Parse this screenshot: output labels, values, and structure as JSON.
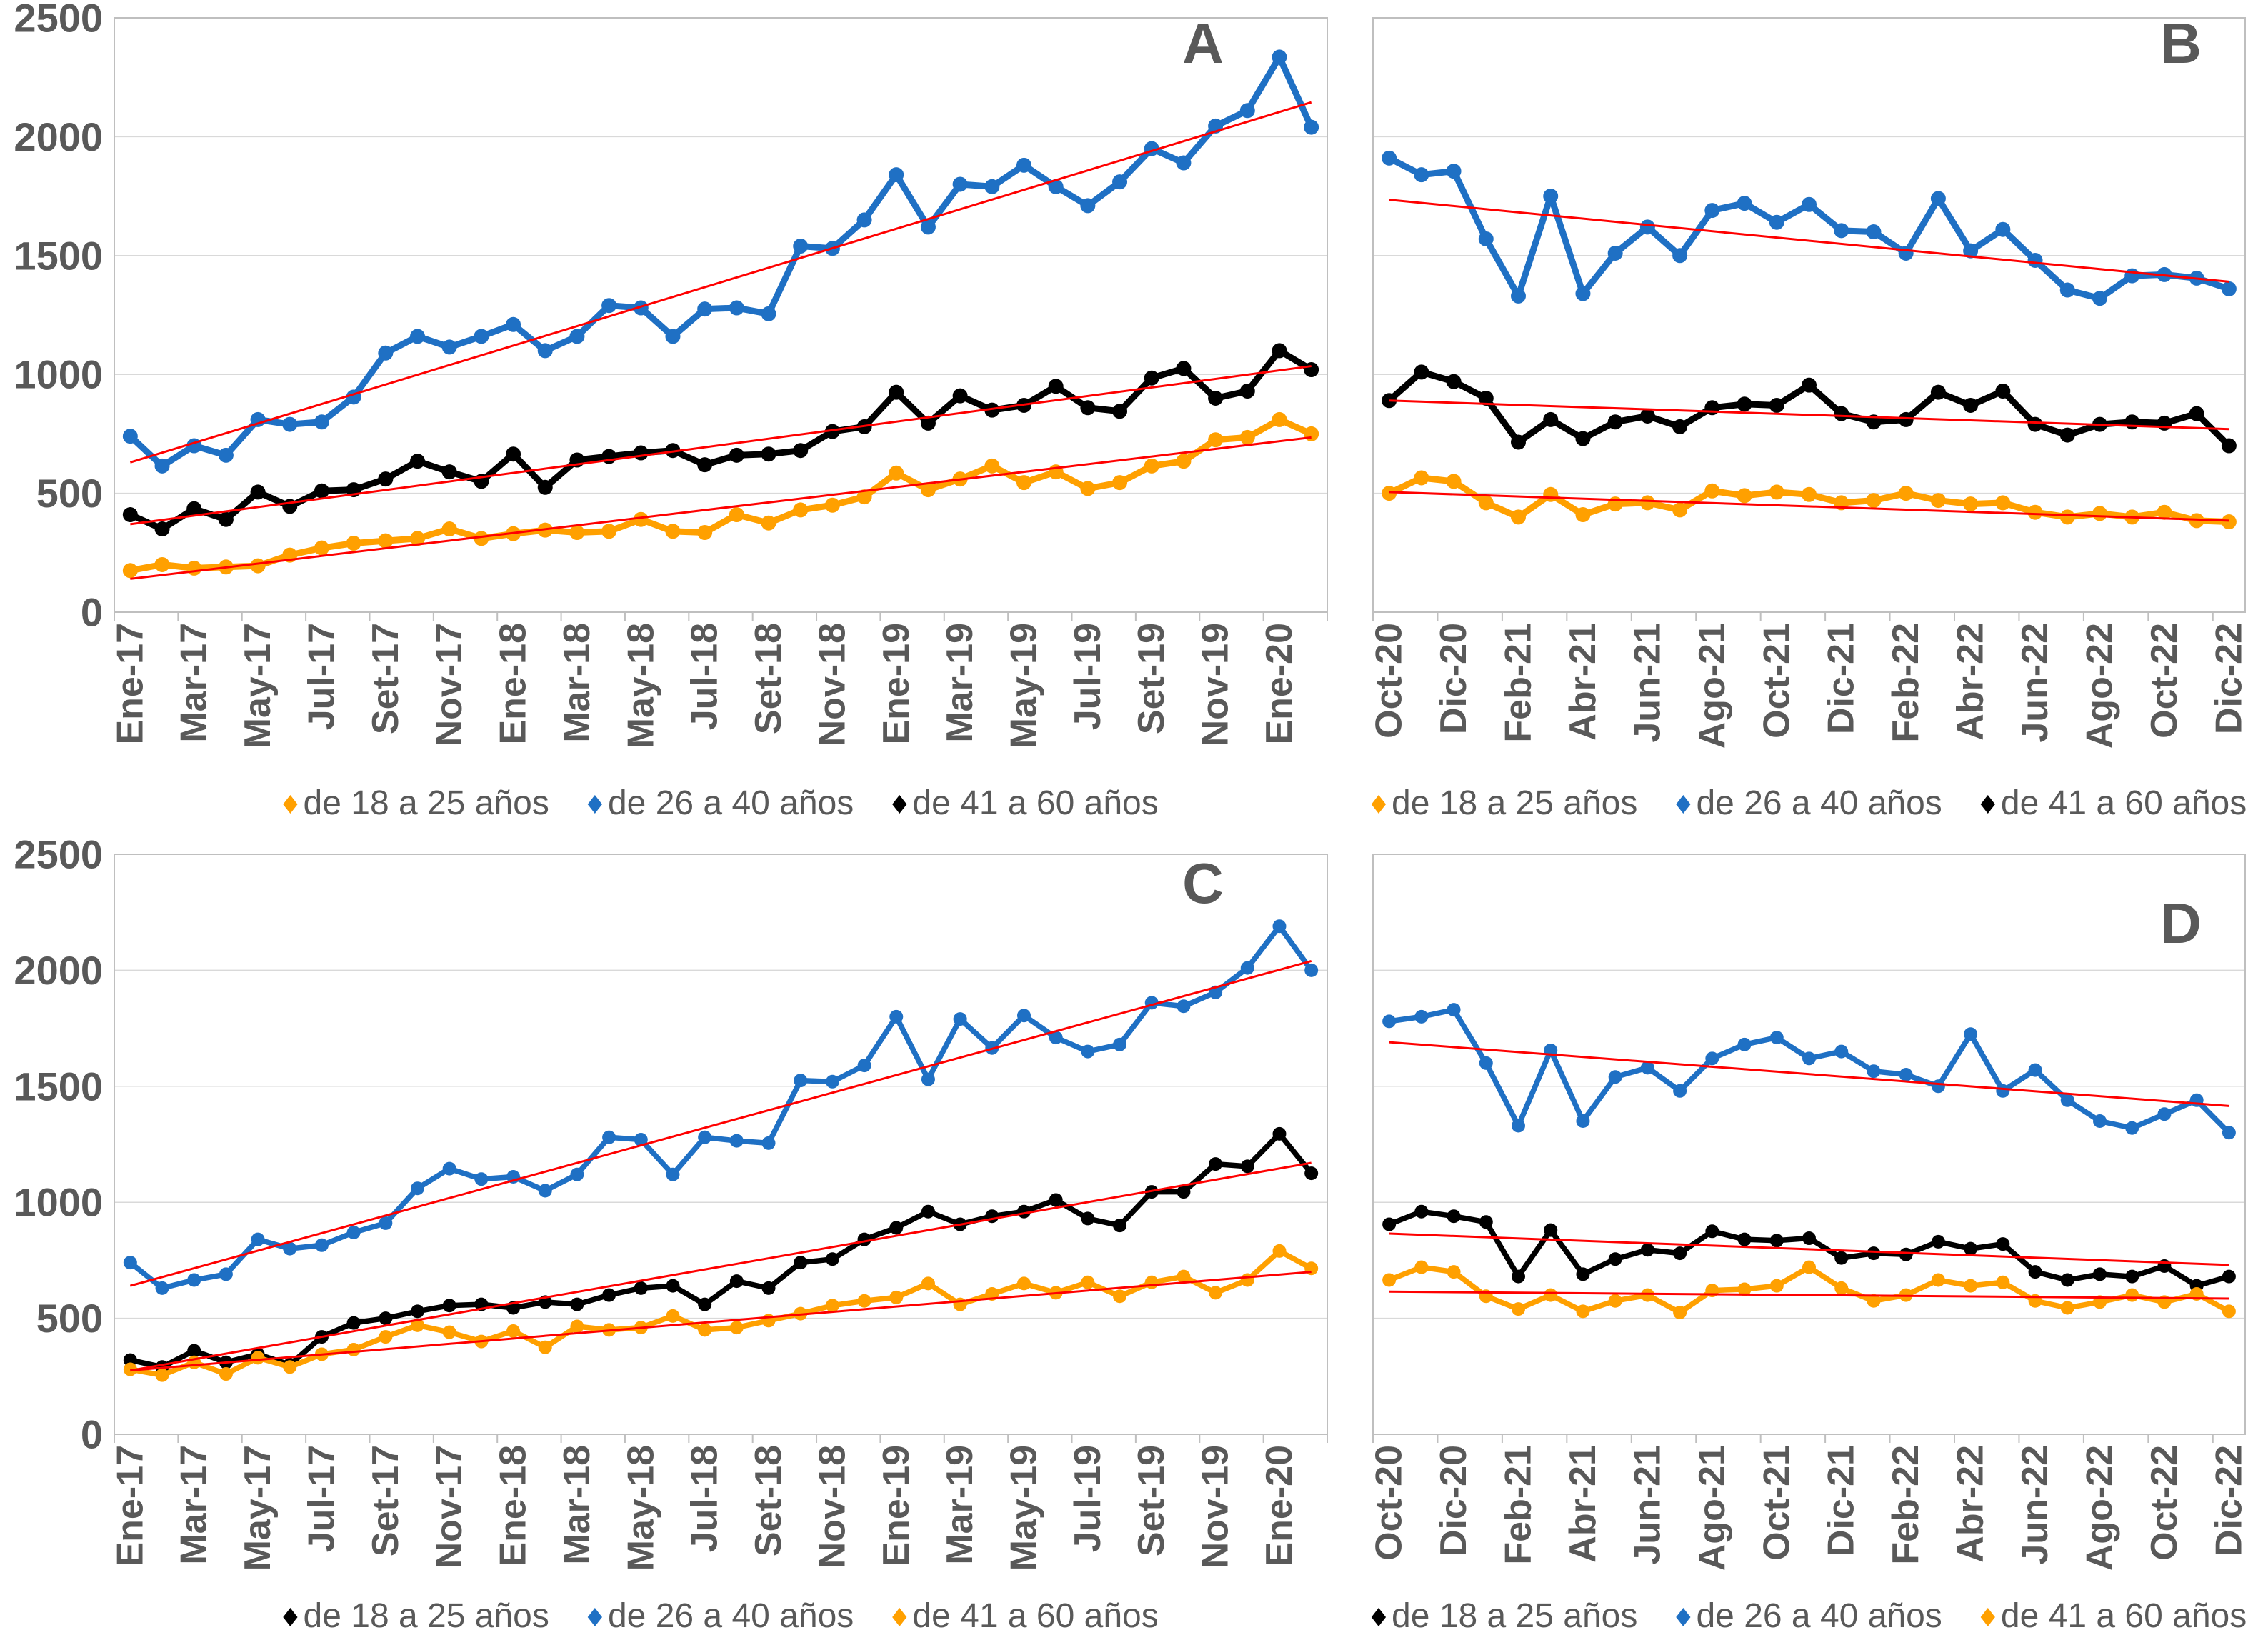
{
  "figure": {
    "background": "#FFFFFF",
    "panel_letters": [
      "A",
      "B",
      "C",
      "D"
    ]
  },
  "colors": {
    "orange": "#FFA000",
    "blue": "#1F70C4",
    "black": "#000000",
    "trend": "#FF0000",
    "grid": "#D9D9D9",
    "axis": "#BFBFBF",
    "label": "#595959"
  },
  "y_axis": {
    "ticks": [
      0,
      500,
      1000,
      1500,
      2000,
      2500
    ],
    "labels": [
      "0",
      "500",
      "1000",
      "1500",
      "2000",
      "2500"
    ]
  },
  "chart_data": [
    {
      "id": "A",
      "letter": "A",
      "type": "line",
      "row": 0,
      "col": 0,
      "show_y_labels": true,
      "ylim": [
        0,
        2500
      ],
      "x_label_every": 2,
      "legend_position": "bottom",
      "grid": true,
      "categories": [
        "Ene-17",
        "Feb-17",
        "Mar-17",
        "Abr-17",
        "May-17",
        "Jun-17",
        "Jul-17",
        "Ago-17",
        "Set-17",
        "Oct-17",
        "Nov-17",
        "Dic-17",
        "Ene-18",
        "Feb-18",
        "Mar-18",
        "Abr-18",
        "May-18",
        "Jun-18",
        "Jul-18",
        "Ago-18",
        "Set-18",
        "Oct-18",
        "Nov-18",
        "Dic-18",
        "Ene-19",
        "Feb-19",
        "Mar-19",
        "Abr-19",
        "May-19",
        "Jun-19",
        "Jul-19",
        "Ago-19",
        "Set-19",
        "Oct-19",
        "Nov-19",
        "Dic-19",
        "Ene-20",
        "Feb-20"
      ],
      "series": [
        {
          "name": "de 18 a 25 años",
          "color": "orange",
          "values": [
            175,
            200,
            185,
            190,
            195,
            240,
            270,
            290,
            300,
            310,
            350,
            310,
            330,
            345,
            335,
            340,
            390,
            340,
            335,
            410,
            375,
            430,
            450,
            485,
            585,
            515,
            560,
            615,
            545,
            590,
            520,
            545,
            615,
            635,
            725,
            735,
            810,
            750
          ],
          "trend": [
            140,
            735
          ]
        },
        {
          "name": "de 26 a 40 años",
          "color": "blue",
          "values": [
            740,
            615,
            700,
            660,
            810,
            790,
            800,
            905,
            1090,
            1160,
            1115,
            1160,
            1210,
            1100,
            1160,
            1290,
            1280,
            1160,
            1275,
            1280,
            1255,
            1540,
            1530,
            1650,
            1840,
            1620,
            1800,
            1790,
            1880,
            1790,
            1710,
            1810,
            1950,
            1890,
            2045,
            2110,
            2335,
            2040
          ],
          "trend": [
            630,
            2145
          ]
        },
        {
          "name": "de 41 a 60 años",
          "color": "black",
          "values": [
            410,
            350,
            435,
            390,
            505,
            445,
            510,
            515,
            560,
            635,
            590,
            550,
            665,
            525,
            640,
            655,
            670,
            680,
            620,
            660,
            665,
            680,
            760,
            780,
            925,
            795,
            910,
            850,
            870,
            950,
            860,
            845,
            985,
            1025,
            900,
            930,
            1100,
            1020
          ],
          "trend": [
            370,
            1035
          ]
        }
      ]
    },
    {
      "id": "B",
      "letter": "B",
      "type": "line",
      "row": 0,
      "col": 1,
      "show_y_labels": false,
      "ylim": [
        0,
        2500
      ],
      "x_label_every": 2,
      "legend_position": "bottom",
      "grid": true,
      "categories": [
        "Oct-20",
        "Nov-20",
        "Dic-20",
        "Ene-21",
        "Feb-21",
        "Mar-21",
        "Abr-21",
        "May-21",
        "Jun-21",
        "Jul-21",
        "Ago-21",
        "Set-21",
        "Oct-21",
        "Nov-21",
        "Dic-21",
        "Ene-22",
        "Feb-22",
        "Mar-22",
        "Abr-22",
        "May-22",
        "Jun-22",
        "Jul-22",
        "Ago-22",
        "Set-22",
        "Oct-22",
        "Nov-22",
        "Dic-22"
      ],
      "series": [
        {
          "name": "de 18 a 25 años",
          "color": "orange",
          "values": [
            500,
            565,
            550,
            460,
            400,
            495,
            410,
            455,
            460,
            430,
            510,
            490,
            505,
            495,
            460,
            470,
            500,
            470,
            455,
            460,
            420,
            400,
            415,
            400,
            420,
            385,
            380
          ],
          "trend": [
            505,
            385
          ]
        },
        {
          "name": "de 26 a 40 años",
          "color": "blue",
          "values": [
            1910,
            1840,
            1855,
            1570,
            1330,
            1750,
            1340,
            1510,
            1620,
            1500,
            1690,
            1720,
            1640,
            1715,
            1605,
            1600,
            1510,
            1740,
            1520,
            1610,
            1480,
            1355,
            1320,
            1415,
            1420,
            1405,
            1360
          ],
          "trend": [
            1735,
            1390
          ]
        },
        {
          "name": "de 41 a 60 años",
          "color": "black",
          "values": [
            890,
            1010,
            970,
            900,
            715,
            810,
            730,
            800,
            825,
            780,
            860,
            875,
            870,
            955,
            835,
            800,
            810,
            925,
            870,
            930,
            790,
            745,
            790,
            800,
            795,
            835,
            700
          ],
          "trend": [
            890,
            770
          ]
        }
      ]
    },
    {
      "id": "C",
      "letter": "C",
      "type": "line",
      "row": 1,
      "col": 0,
      "show_y_labels": true,
      "ylim": [
        0,
        2500
      ],
      "x_label_every": 2,
      "legend_position": "bottom",
      "grid": true,
      "categories": [
        "Ene-17",
        "Feb-17",
        "Mar-17",
        "Abr-17",
        "May-17",
        "Jun-17",
        "Jul-17",
        "Ago-17",
        "Set-17",
        "Oct-17",
        "Nov-17",
        "Dic-17",
        "Ene-18",
        "Feb-18",
        "Mar-18",
        "Abr-18",
        "May-18",
        "Jun-18",
        "Jul-18",
        "Ago-18",
        "Set-18",
        "Oct-18",
        "Nov-18",
        "Dic-18",
        "Ene-19",
        "Feb-19",
        "Mar-19",
        "Abr-19",
        "May-19",
        "Jun-19",
        "Jul-19",
        "Ago-19",
        "Set-19",
        "Oct-19",
        "Nov-19",
        "Dic-19",
        "Ene-20",
        "Feb-20"
      ],
      "series": [
        {
          "name": "de 18 a 25 años",
          "color": "black",
          "values": [
            320,
            290,
            360,
            310,
            345,
            300,
            420,
            480,
            500,
            530,
            555,
            560,
            545,
            570,
            560,
            600,
            630,
            640,
            560,
            660,
            630,
            740,
            755,
            840,
            890,
            960,
            905,
            940,
            960,
            1010,
            930,
            900,
            1045,
            1045,
            1165,
            1155,
            1295,
            1125
          ],
          "trend": [
            275,
            1170
          ]
        },
        {
          "name": "de 26 a 40 años",
          "color": "blue",
          "values": [
            740,
            630,
            665,
            690,
            840,
            800,
            815,
            870,
            910,
            1060,
            1145,
            1100,
            1110,
            1050,
            1120,
            1280,
            1270,
            1120,
            1280,
            1265,
            1255,
            1525,
            1520,
            1590,
            1800,
            1530,
            1790,
            1665,
            1805,
            1710,
            1650,
            1680,
            1860,
            1845,
            1905,
            2010,
            2190,
            2000
          ],
          "trend": [
            640,
            2040
          ]
        },
        {
          "name": "de 41 a 60 años",
          "color": "orange",
          "values": [
            280,
            255,
            310,
            260,
            330,
            290,
            345,
            365,
            420,
            470,
            440,
            400,
            445,
            375,
            465,
            450,
            460,
            510,
            450,
            460,
            490,
            520,
            555,
            575,
            590,
            650,
            560,
            605,
            650,
            610,
            655,
            595,
            655,
            680,
            610,
            665,
            790,
            715
          ],
          "trend": [
            275,
            700
          ]
        }
      ]
    },
    {
      "id": "D",
      "letter": "D",
      "type": "line",
      "row": 1,
      "col": 1,
      "show_y_labels": false,
      "ylim": [
        0,
        2500
      ],
      "x_label_every": 2,
      "legend_position": "bottom",
      "grid": true,
      "categories": [
        "Oct-20",
        "Nov-20",
        "Dic-20",
        "Ene-21",
        "Feb-21",
        "Mar-21",
        "Abr-21",
        "May-21",
        "Jun-21",
        "Jul-21",
        "Ago-21",
        "Set-21",
        "Oct-21",
        "Nov-21",
        "Dic-21",
        "Ene-22",
        "Feb-22",
        "Mar-22",
        "Abr-22",
        "May-22",
        "Jun-22",
        "Jul-22",
        "Ago-22",
        "Set-22",
        "Oct-22",
        "Nov-22",
        "Dic-22"
      ],
      "series": [
        {
          "name": "de 18 a 25 años",
          "color": "black",
          "values": [
            905,
            960,
            940,
            915,
            680,
            880,
            690,
            755,
            795,
            780,
            875,
            840,
            835,
            845,
            760,
            780,
            775,
            830,
            800,
            820,
            700,
            665,
            690,
            680,
            725,
            640,
            680
          ],
          "trend": [
            865,
            730
          ]
        },
        {
          "name": "de 26 a 40 años",
          "color": "blue",
          "values": [
            1780,
            1800,
            1830,
            1600,
            1330,
            1655,
            1350,
            1540,
            1580,
            1480,
            1620,
            1680,
            1710,
            1620,
            1650,
            1565,
            1550,
            1500,
            1725,
            1480,
            1570,
            1440,
            1350,
            1320,
            1380,
            1440,
            1300
          ],
          "trend": [
            1690,
            1415
          ]
        },
        {
          "name": "de 41 a 60 años",
          "color": "orange",
          "values": [
            665,
            720,
            700,
            595,
            540,
            600,
            530,
            575,
            600,
            525,
            620,
            625,
            640,
            720,
            630,
            575,
            600,
            665,
            640,
            655,
            575,
            545,
            570,
            600,
            570,
            605,
            530
          ],
          "trend": [
            615,
            585
          ]
        }
      ]
    }
  ]
}
